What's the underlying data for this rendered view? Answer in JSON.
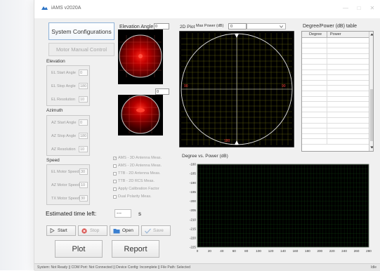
{
  "window": {
    "title": "iAMS v2020A",
    "min": "—",
    "max": "□",
    "close": "✕"
  },
  "left": {
    "system_config": "System Configurations",
    "motor_manual": "Motor Manual Control",
    "elevation_title": "Elevation",
    "elevation_fields": [
      {
        "label": "EL Start Angle",
        "value": "0"
      },
      {
        "label": "EL Stop Angle",
        "value": "180"
      },
      {
        "label": "EL Resolution",
        "value": "10"
      }
    ],
    "azimuth_title": "Azimuth",
    "azimuth_fields": [
      {
        "label": "AZ Start Angle",
        "value": "0"
      },
      {
        "label": "AZ Stop Angle",
        "value": "180"
      },
      {
        "label": "AZ Resolution",
        "value": "10"
      }
    ],
    "speed_title": "Speed",
    "speed_fields": [
      {
        "label": "EL Motor Speed",
        "value": "30"
      },
      {
        "label": "AZ Motor Speed",
        "value": "10"
      },
      {
        "label": "TX Motor Speed",
        "value": "30"
      }
    ],
    "est_label": "Estimated time left:",
    "est_value": "---",
    "est_unit": "s"
  },
  "elevation_plot": {
    "label": "Elevation Angle",
    "value": "0",
    "value2": "0"
  },
  "checkboxes": [
    {
      "label": "AMS - 3D Antenna Meas.",
      "checked": true
    },
    {
      "label": "AMS - 2D Antenna Meas.",
      "checked": false
    },
    {
      "label": "TTB - 2D Antenna Meas.",
      "checked": false
    },
    {
      "label": "TTB - 2D RCS Meas.",
      "checked": false
    },
    {
      "label": "Apply Calibration Factor",
      "checked": false
    },
    {
      "label": "Dual Polarity Meas.",
      "checked": false
    }
  ],
  "toolbar": {
    "start": "Start",
    "stop": "Stop",
    "open": "Open",
    "save": "Save",
    "plot": "Plot",
    "report": "Report"
  },
  "plot2d": {
    "label": "2D Plot",
    "max_power_label": "Max Power (dB)",
    "max_power_value": "0",
    "dropdown_value": "",
    "marker_left": "90",
    "marker_right": "90",
    "marker_bottom": "180"
  },
  "table": {
    "title": "Degree/Power (dB) table",
    "columns": [
      "Degree",
      "Power"
    ],
    "rows": 20
  },
  "chart_title": "Degree vs. Power (dB)",
  "chart_data": {
    "type": "line",
    "title": "Degree vs. Power (dB)",
    "xlabel": "",
    "ylabel": "",
    "xlim": [
      0,
      280
    ],
    "ylim": [
      -225,
      -180
    ],
    "x_ticks": [
      0,
      20,
      40,
      60,
      80,
      100,
      120,
      140,
      160,
      180,
      200,
      220,
      240,
      260,
      280
    ],
    "y_ticks": [
      -180,
      -185,
      -190,
      -195,
      -200,
      -205,
      -210,
      -215,
      -220,
      -225
    ],
    "series": [],
    "grid": true,
    "background": "#000000",
    "grid_color": "#1f6b1f"
  },
  "status": {
    "text": "System: Not Ready || COM Port: Not Connected || Device Config: Incomplete || File Path: Selected",
    "state": "Idle"
  },
  "colors": {
    "accent": "#2b73c5",
    "plot_grid": "#c8c820",
    "polar_fill": "#ff0000"
  }
}
